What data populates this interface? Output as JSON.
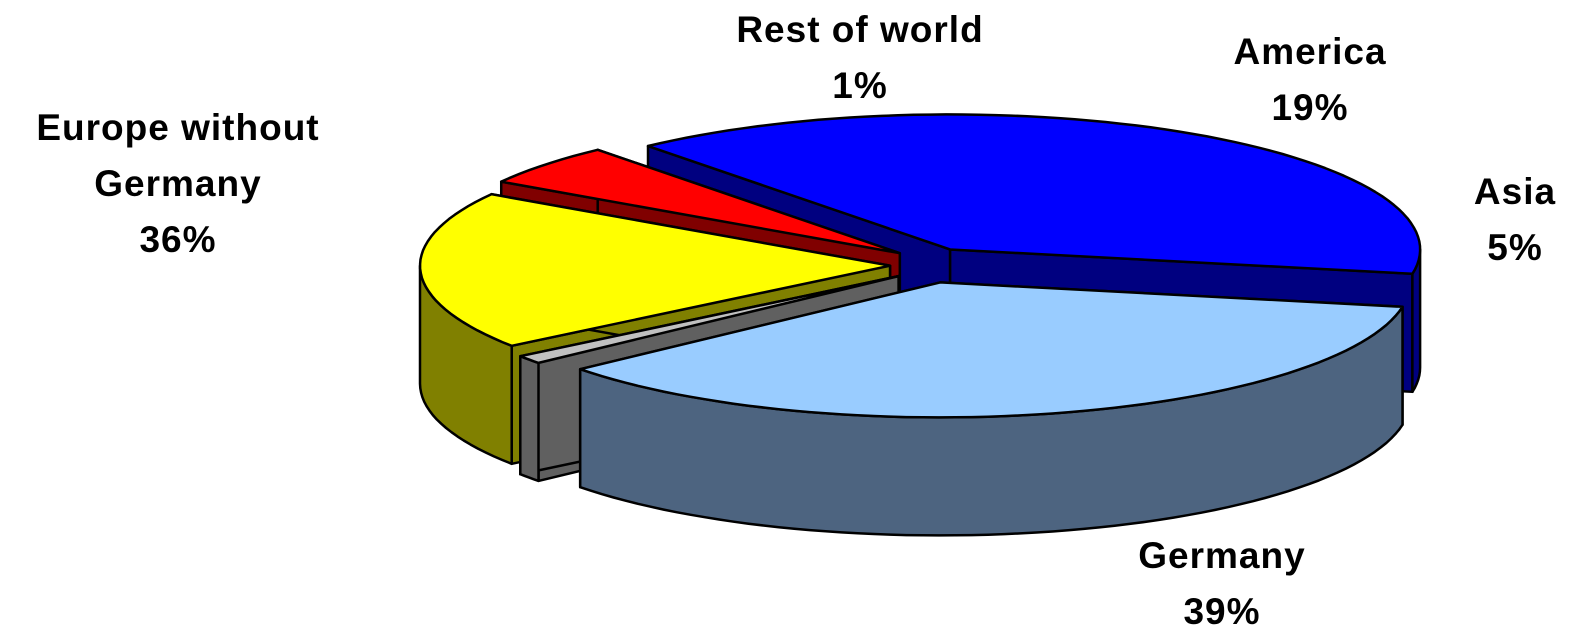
{
  "chart_data": {
    "type": "pie",
    "style": "3d-exploded",
    "title": "",
    "slices": [
      {
        "label": "Germany",
        "value": 39,
        "value_label": "39%",
        "color": "#0000FF",
        "side_color": "#000080"
      },
      {
        "label": "Europe without Germany",
        "label_lines": [
          "Europe without",
          "Germany"
        ],
        "value": 36,
        "value_label": "36%",
        "color": "#99CCFF",
        "side_color": "#4D6480"
      },
      {
        "label": "Rest of world",
        "value": 1,
        "value_label": "1%",
        "color": "#C0C0C0",
        "side_color": "#606060"
      },
      {
        "label": "America",
        "value": 19,
        "value_label": "19%",
        "color": "#FFFF00",
        "side_color": "#808000"
      },
      {
        "label": "Asia",
        "value": 5,
        "value_label": "5%",
        "color": "#FF0000",
        "side_color": "#800000"
      }
    ]
  }
}
